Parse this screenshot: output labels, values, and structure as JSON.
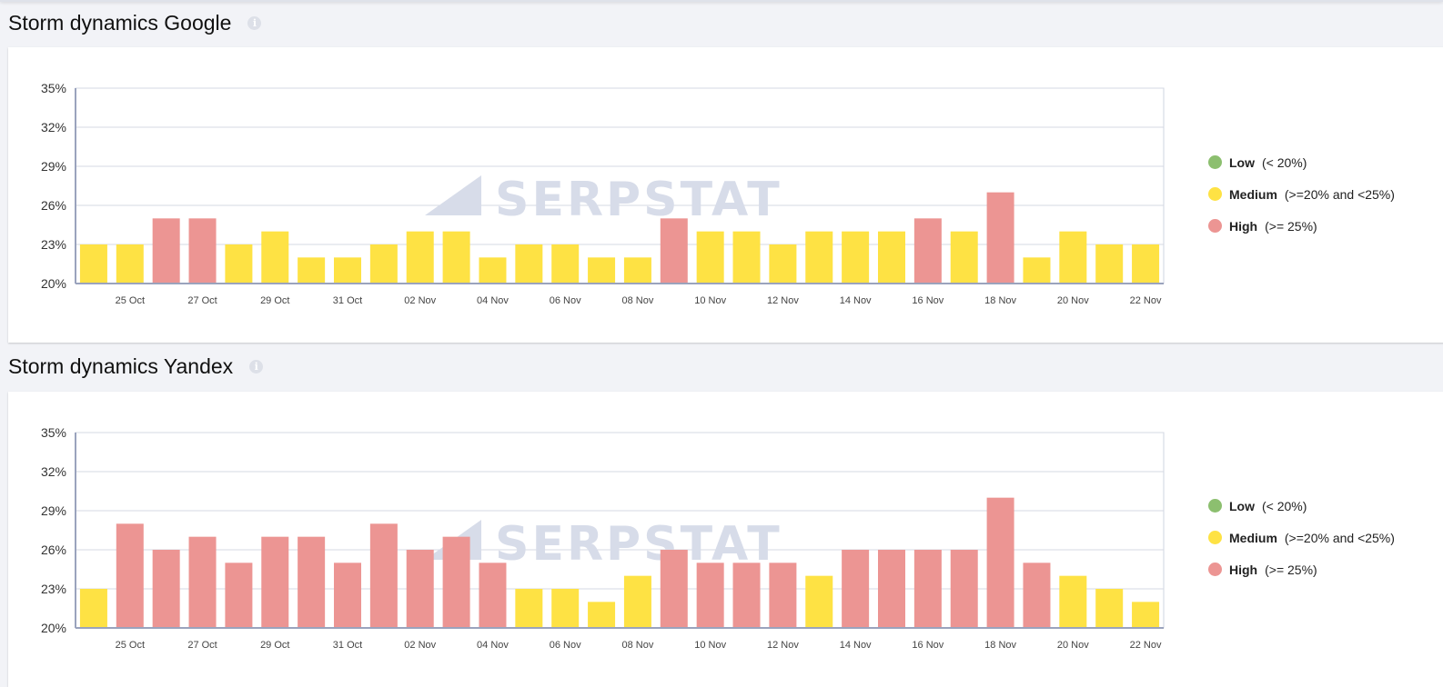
{
  "colors": {
    "low": "#8cbf6f",
    "medium": "#fee244",
    "high": "#ec9593"
  },
  "legend": [
    {
      "key": "low",
      "name": "Low",
      "range": "(< 20%)"
    },
    {
      "key": "medium",
      "name": "Medium",
      "range": "(>=20% and <25%)"
    },
    {
      "key": "high",
      "name": "High",
      "range": "(>= 25%)"
    }
  ],
  "watermark": "SERPSTAT",
  "info_icon": "info-icon",
  "chart_data": [
    {
      "type": "bar",
      "title": "Storm dynamics Google",
      "x": [
        "24 Oct",
        "25 Oct",
        "26 Oct",
        "27 Oct",
        "28 Oct",
        "29 Oct",
        "30 Oct",
        "31 Oct",
        "01 Nov",
        "02 Nov",
        "03 Nov",
        "04 Nov",
        "05 Nov",
        "06 Nov",
        "07 Nov",
        "08 Nov",
        "09 Nov",
        "10 Nov",
        "11 Nov",
        "12 Nov",
        "13 Nov",
        "14 Nov",
        "15 Nov",
        "16 Nov",
        "17 Nov",
        "18 Nov",
        "19 Nov",
        "20 Nov",
        "21 Nov",
        "22 Nov"
      ],
      "x_tick_labels": [
        "25 Oct",
        "27 Oct",
        "29 Oct",
        "31 Oct",
        "02 Nov",
        "04 Nov",
        "06 Nov",
        "08 Nov",
        "10 Nov",
        "12 Nov",
        "14 Nov",
        "16 Nov",
        "18 Nov",
        "20 Nov",
        "22 Nov"
      ],
      "values": [
        23,
        23,
        25,
        25,
        23,
        24,
        22,
        22,
        23,
        24,
        24,
        22,
        23,
        23,
        22,
        22,
        25,
        24,
        24,
        23,
        24,
        24,
        24,
        25,
        24,
        27,
        22,
        24,
        23,
        23
      ],
      "y_ticks": [
        "35%",
        "32%",
        "29%",
        "26%",
        "23%",
        "20%"
      ],
      "ylim": [
        20,
        35
      ],
      "grid": true,
      "legend_position": "right"
    },
    {
      "type": "bar",
      "title": "Storm dynamics Yandex",
      "x": [
        "24 Oct",
        "25 Oct",
        "26 Oct",
        "27 Oct",
        "28 Oct",
        "29 Oct",
        "30 Oct",
        "31 Oct",
        "01 Nov",
        "02 Nov",
        "03 Nov",
        "04 Nov",
        "05 Nov",
        "06 Nov",
        "07 Nov",
        "08 Nov",
        "09 Nov",
        "10 Nov",
        "11 Nov",
        "12 Nov",
        "13 Nov",
        "14 Nov",
        "15 Nov",
        "16 Nov",
        "17 Nov",
        "18 Nov",
        "19 Nov",
        "20 Nov",
        "21 Nov",
        "22 Nov"
      ],
      "x_tick_labels": [
        "25 Oct",
        "27 Oct",
        "29 Oct",
        "31 Oct",
        "02 Nov",
        "04 Nov",
        "06 Nov",
        "08 Nov",
        "10 Nov",
        "12 Nov",
        "14 Nov",
        "16 Nov",
        "18 Nov",
        "20 Nov",
        "22 Nov"
      ],
      "values": [
        23,
        28,
        26,
        27,
        25,
        27,
        27,
        25,
        28,
        26,
        27,
        25,
        23,
        23,
        22,
        24,
        26,
        25,
        25,
        25,
        24,
        26,
        26,
        26,
        26,
        30,
        25,
        24,
        23,
        22
      ],
      "y_ticks": [
        "35%",
        "32%",
        "29%",
        "26%",
        "23%",
        "20%"
      ],
      "ylim": [
        20,
        35
      ],
      "grid": true,
      "legend_position": "right"
    }
  ]
}
